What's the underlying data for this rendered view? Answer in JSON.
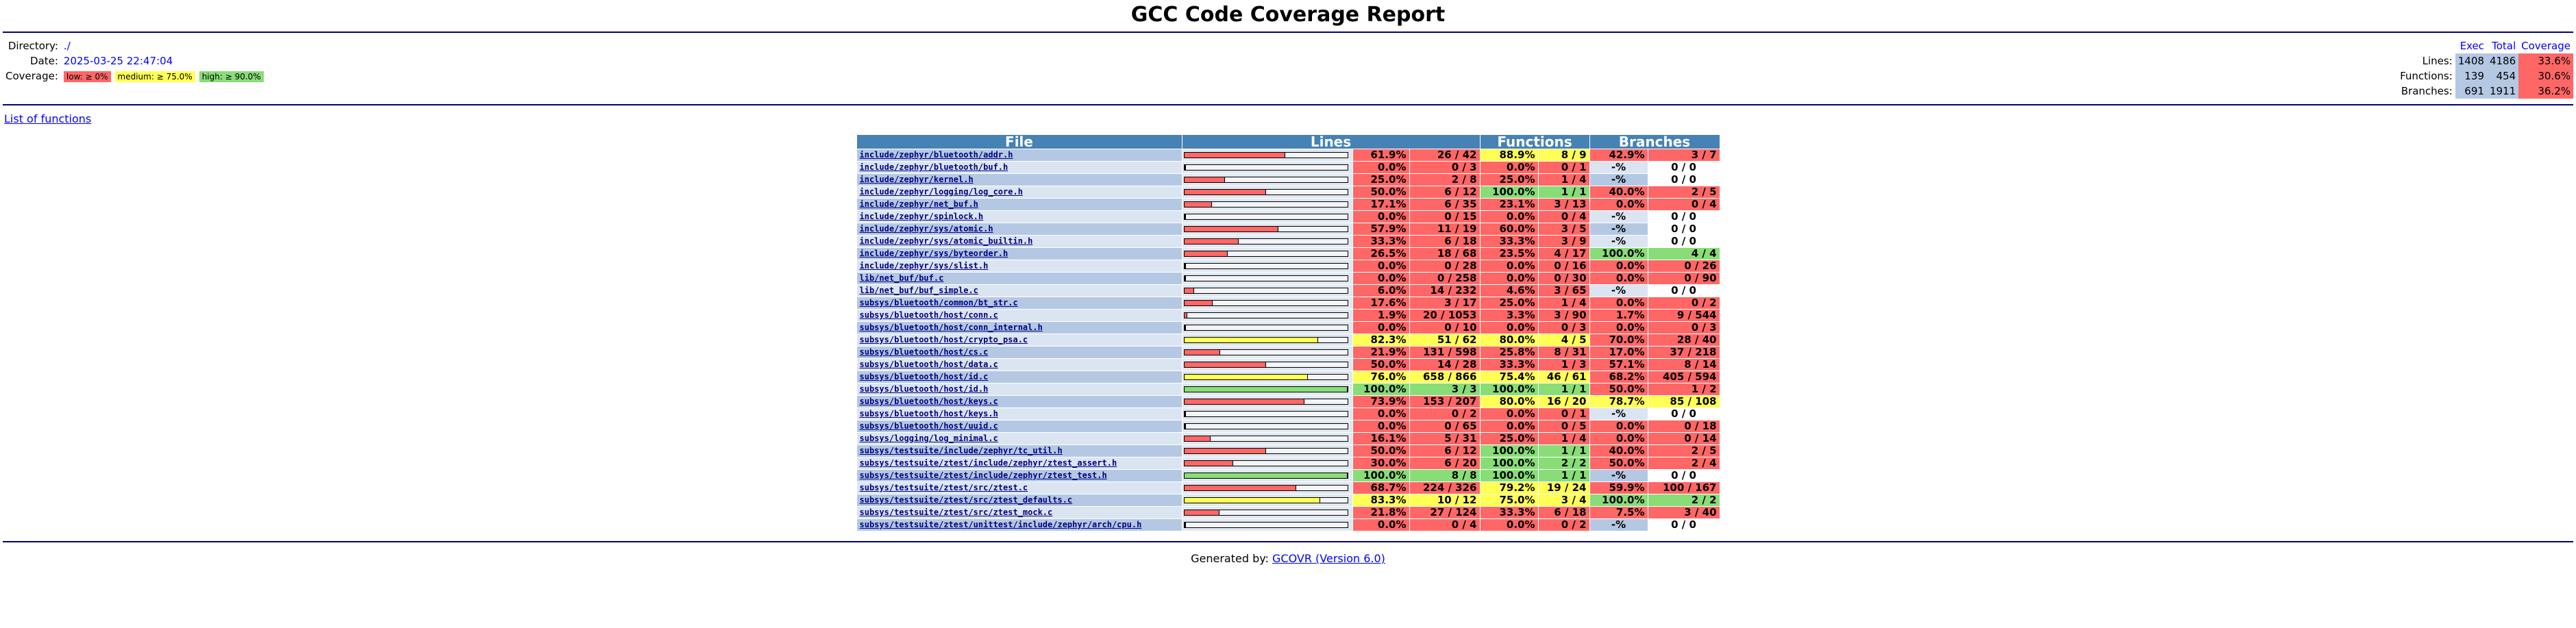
{
  "title": "GCC Code Coverage Report",
  "header": {
    "directory_label": "Directory:",
    "directory": "./",
    "date_label": "Date:",
    "date": "2025-03-25 22:47:04",
    "coverage_label": "Coverage:",
    "legend": [
      {
        "label": "low: ≥ 0%",
        "color": "#ff6666"
      },
      {
        "label": "medium: ≥ 75.0%",
        "color": "#ffff55"
      },
      {
        "label": "high: ≥ 90.0%",
        "color": "#88dd77"
      }
    ]
  },
  "summary": {
    "headers": [
      "Exec",
      "Total",
      "Coverage"
    ],
    "rows": [
      {
        "label": "Lines:",
        "exec": "1408",
        "total": "4186",
        "coverage": "33.6%"
      },
      {
        "label": "Functions:",
        "exec": "139",
        "total": "454",
        "coverage": "30.6%"
      },
      {
        "label": "Branches:",
        "exec": "691",
        "total": "1911",
        "coverage": "36.2%"
      }
    ]
  },
  "functions_link": "List of functions",
  "table": {
    "headers": [
      "File",
      "Lines",
      "Functions",
      "Branches"
    ],
    "rows": [
      {
        "file": "include/zephyr/bluetooth/addr.h",
        "bar": 61.9,
        "lp": "61.9%",
        "lc": "26 / 42",
        "fp": "88.9%",
        "fc": "8 / 9",
        "bp": "42.9%",
        "bc": "3 / 7"
      },
      {
        "file": "include/zephyr/bluetooth/buf.h",
        "bar": 0,
        "lp": "0.0%",
        "lc": "0 / 3",
        "fp": "0.0%",
        "fc": "0 / 1",
        "bp": "-%",
        "bc": "0 / 0"
      },
      {
        "file": "include/zephyr/kernel.h",
        "bar": 25,
        "lp": "25.0%",
        "lc": "2 / 8",
        "fp": "25.0%",
        "fc": "1 / 4",
        "bp": "-%",
        "bc": "0 / 0"
      },
      {
        "file": "include/zephyr/logging/log_core.h",
        "bar": 50,
        "lp": "50.0%",
        "lc": "6 / 12",
        "fp": "100.0%",
        "fc": "1 / 1",
        "bp": "40.0%",
        "bc": "2 / 5"
      },
      {
        "file": "include/zephyr/net_buf.h",
        "bar": 17.1,
        "lp": "17.1%",
        "lc": "6 / 35",
        "fp": "23.1%",
        "fc": "3 / 13",
        "bp": "0.0%",
        "bc": "0 / 4"
      },
      {
        "file": "include/zephyr/spinlock.h",
        "bar": 0,
        "lp": "0.0%",
        "lc": "0 / 15",
        "fp": "0.0%",
        "fc": "0 / 4",
        "bp": "-%",
        "bc": "0 / 0"
      },
      {
        "file": "include/zephyr/sys/atomic.h",
        "bar": 57.9,
        "lp": "57.9%",
        "lc": "11 / 19",
        "fp": "60.0%",
        "fc": "3 / 5",
        "bp": "-%",
        "bc": "0 / 0"
      },
      {
        "file": "include/zephyr/sys/atomic_builtin.h",
        "bar": 33.3,
        "lp": "33.3%",
        "lc": "6 / 18",
        "fp": "33.3%",
        "fc": "3 / 9",
        "bp": "-%",
        "bc": "0 / 0"
      },
      {
        "file": "include/zephyr/sys/byteorder.h",
        "bar": 26.5,
        "lp": "26.5%",
        "lc": "18 / 68",
        "fp": "23.5%",
        "fc": "4 / 17",
        "bp": "100.0%",
        "bc": "4 / 4"
      },
      {
        "file": "include/zephyr/sys/slist.h",
        "bar": 0,
        "lp": "0.0%",
        "lc": "0 / 28",
        "fp": "0.0%",
        "fc": "0 / 16",
        "bp": "0.0%",
        "bc": "0 / 26"
      },
      {
        "file": "lib/net_buf/buf.c",
        "bar": 0,
        "lp": "0.0%",
        "lc": "0 / 258",
        "fp": "0.0%",
        "fc": "0 / 30",
        "bp": "0.0%",
        "bc": "0 / 90"
      },
      {
        "file": "lib/net_buf/buf_simple.c",
        "bar": 6,
        "lp": "6.0%",
        "lc": "14 / 232",
        "fp": "4.6%",
        "fc": "3 / 65",
        "bp": "-%",
        "bc": "0 / 0"
      },
      {
        "file": "subsys/bluetooth/common/bt_str.c",
        "bar": 17.6,
        "lp": "17.6%",
        "lc": "3 / 17",
        "fp": "25.0%",
        "fc": "1 / 4",
        "bp": "0.0%",
        "bc": "0 / 2"
      },
      {
        "file": "subsys/bluetooth/host/conn.c",
        "bar": 1.9,
        "lp": "1.9%",
        "lc": "20 / 1053",
        "fp": "3.3%",
        "fc": "3 / 90",
        "bp": "1.7%",
        "bc": "9 / 544"
      },
      {
        "file": "subsys/bluetooth/host/conn_internal.h",
        "bar": 0,
        "lp": "0.0%",
        "lc": "0 / 10",
        "fp": "0.0%",
        "fc": "0 / 3",
        "bp": "0.0%",
        "bc": "0 / 3"
      },
      {
        "file": "subsys/bluetooth/host/crypto_psa.c",
        "bar": 82.3,
        "lp": "82.3%",
        "lc": "51 / 62",
        "fp": "80.0%",
        "fc": "4 / 5",
        "bp": "70.0%",
        "bc": "28 / 40"
      },
      {
        "file": "subsys/bluetooth/host/cs.c",
        "bar": 21.9,
        "lp": "21.9%",
        "lc": "131 / 598",
        "fp": "25.8%",
        "fc": "8 / 31",
        "bp": "17.0%",
        "bc": "37 / 218"
      },
      {
        "file": "subsys/bluetooth/host/data.c",
        "bar": 50,
        "lp": "50.0%",
        "lc": "14 / 28",
        "fp": "33.3%",
        "fc": "1 / 3",
        "bp": "57.1%",
        "bc": "8 / 14"
      },
      {
        "file": "subsys/bluetooth/host/id.c",
        "bar": 76,
        "lp": "76.0%",
        "lc": "658 / 866",
        "fp": "75.4%",
        "fc": "46 / 61",
        "bp": "68.2%",
        "bc": "405 / 594"
      },
      {
        "file": "subsys/bluetooth/host/id.h",
        "bar": 100,
        "lp": "100.0%",
        "lc": "3 / 3",
        "fp": "100.0%",
        "fc": "1 / 1",
        "bp": "50.0%",
        "bc": "1 / 2"
      },
      {
        "file": "subsys/bluetooth/host/keys.c",
        "bar": 73.9,
        "lp": "73.9%",
        "lc": "153 / 207",
        "fp": "80.0%",
        "fc": "16 / 20",
        "bp": "78.7%",
        "bc": "85 / 108"
      },
      {
        "file": "subsys/bluetooth/host/keys.h",
        "bar": 0,
        "lp": "0.0%",
        "lc": "0 / 2",
        "fp": "0.0%",
        "fc": "0 / 1",
        "bp": "-%",
        "bc": "0 / 0"
      },
      {
        "file": "subsys/bluetooth/host/uuid.c",
        "bar": 0,
        "lp": "0.0%",
        "lc": "0 / 65",
        "fp": "0.0%",
        "fc": "0 / 5",
        "bp": "0.0%",
        "bc": "0 / 18"
      },
      {
        "file": "subsys/logging/log_minimal.c",
        "bar": 16.1,
        "lp": "16.1%",
        "lc": "5 / 31",
        "fp": "25.0%",
        "fc": "1 / 4",
        "bp": "0.0%",
        "bc": "0 / 14"
      },
      {
        "file": "subsys/testsuite/include/zephyr/tc_util.h",
        "bar": 50,
        "lp": "50.0%",
        "lc": "6 / 12",
        "fp": "100.0%",
        "fc": "1 / 1",
        "bp": "40.0%",
        "bc": "2 / 5"
      },
      {
        "file": "subsys/testsuite/ztest/include/zephyr/ztest_assert.h",
        "bar": 30,
        "lp": "30.0%",
        "lc": "6 / 20",
        "fp": "100.0%",
        "fc": "2 / 2",
        "bp": "50.0%",
        "bc": "2 / 4"
      },
      {
        "file": "subsys/testsuite/ztest/include/zephyr/ztest_test.h",
        "bar": 100,
        "lp": "100.0%",
        "lc": "8 / 8",
        "fp": "100.0%",
        "fc": "1 / 1",
        "bp": "-%",
        "bc": "0 / 0"
      },
      {
        "file": "subsys/testsuite/ztest/src/ztest.c",
        "bar": 68.7,
        "lp": "68.7%",
        "lc": "224 / 326",
        "fp": "79.2%",
        "fc": "19 / 24",
        "bp": "59.9%",
        "bc": "100 / 167"
      },
      {
        "file": "subsys/testsuite/ztest/src/ztest_defaults.c",
        "bar": 83.3,
        "lp": "83.3%",
        "lc": "10 / 12",
        "fp": "75.0%",
        "fc": "3 / 4",
        "bp": "100.0%",
        "bc": "2 / 2"
      },
      {
        "file": "subsys/testsuite/ztest/src/ztest_mock.c",
        "bar": 21.8,
        "lp": "21.8%",
        "lc": "27 / 124",
        "fp": "33.3%",
        "fc": "6 / 18",
        "bp": "7.5%",
        "bc": "3 / 40"
      },
      {
        "file": "subsys/testsuite/ztest/unittest/include/zephyr/arch/cpu.h",
        "bar": 0,
        "lp": "0.0%",
        "lc": "0 / 4",
        "fp": "0.0%",
        "fc": "0 / 2",
        "bp": "-%",
        "bc": "0 / 0"
      }
    ]
  },
  "footer": {
    "prefix": "Generated by:",
    "link": "GCOVR (Version 6.0)"
  }
}
